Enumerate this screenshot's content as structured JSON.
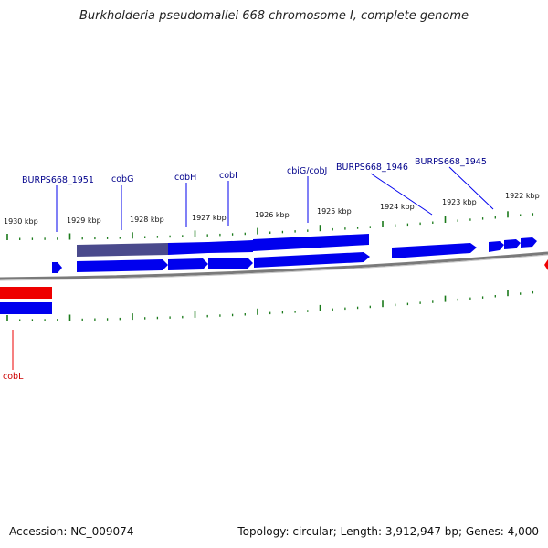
{
  "title": "Burkholderia pseudomallei 668 chromosome I, complete genome",
  "footer": {
    "accession": "Accession: NC_009074",
    "summary": "Topology: circular; Length: 3,912,947 bp; Genes: 4,000"
  },
  "kbp_labels": [
    "1930 kbp",
    "1929 kbp",
    "1928 kbp",
    "1927 kbp",
    "1926 kbp",
    "1925 kbp",
    "1924 kbp",
    "1923 kbp",
    "1922 kbp"
  ],
  "gene_labels": [
    "BURPS668_1951",
    "cobG",
    "cobH",
    "cobI",
    "cbiG/cobJ",
    "BURPS668_1946",
    "BURPS668_1945",
    "cobL"
  ],
  "colors": {
    "forward_gene": "#0000ee",
    "reverse_gene": "#ee0000",
    "highlight_gene": "#4a4a8c",
    "tick": "#1a7a1a",
    "backbone": "#7a7a7a",
    "label_blue": "#00008b",
    "label_red": "#cc0000"
  }
}
